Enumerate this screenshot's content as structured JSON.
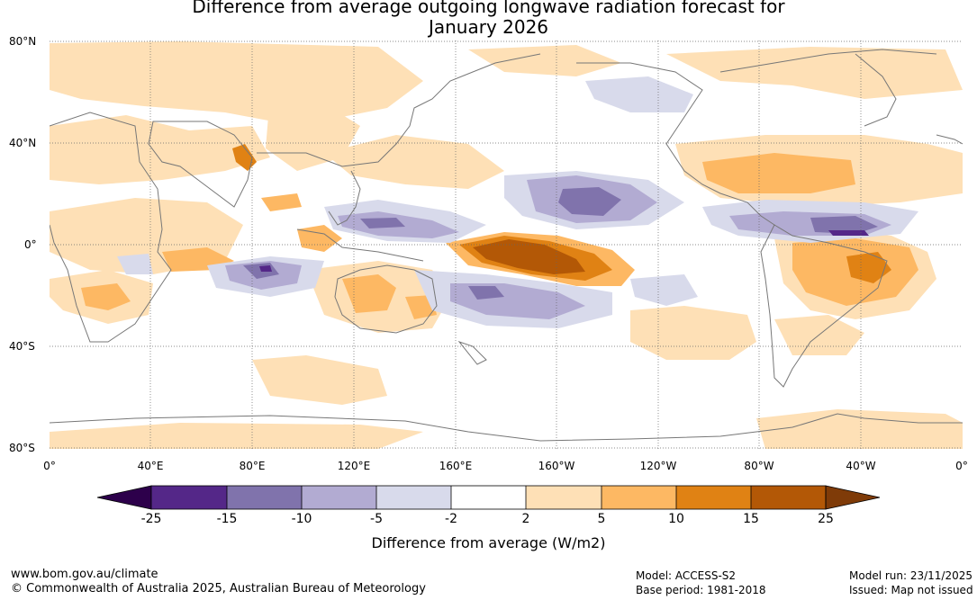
{
  "title": {
    "line1": "Difference from average outgoing longwave radiation forecast for",
    "line2": "January 2026"
  },
  "lat_labels": [
    "80°N",
    "40°N",
    "0°",
    "40°S",
    "80°S"
  ],
  "lon_labels": [
    "0°",
    "40°E",
    "80°E",
    "120°E",
    "160°E",
    "160°W",
    "120°W",
    "80°W",
    "40°W",
    "0°"
  ],
  "colorbar": {
    "ticks": [
      "-25",
      "-15",
      "-10",
      "-5",
      "-2",
      "2",
      "5",
      "10",
      "15",
      "25"
    ],
    "label": "Difference from average (W/m2)",
    "colors": {
      "below_min": "#2d004b",
      "bin_-25_-15": "#542788",
      "bin_-15_-10": "#8073ac",
      "bin_-10_-5": "#b2abd2",
      "bin_-5_-2": "#d8daeb",
      "bin_-2_2": "#ffffff",
      "bin_2_5": "#fee0b6",
      "bin_5_10": "#fdb863",
      "bin_10_15": "#e08214",
      "bin_15_25": "#b35806",
      "above_max": "#7f3b08"
    }
  },
  "footer": {
    "website": "www.bom.gov.au/climate",
    "copyright": "© Commonwealth of Australia 2025, Australian Bureau of Meteorology",
    "model": "Model: ACCESS-S2",
    "base_period": "Base period: 1981-2018",
    "model_run": "Model run: 23/11/2025",
    "issued": "Issued: Map not issued"
  }
}
